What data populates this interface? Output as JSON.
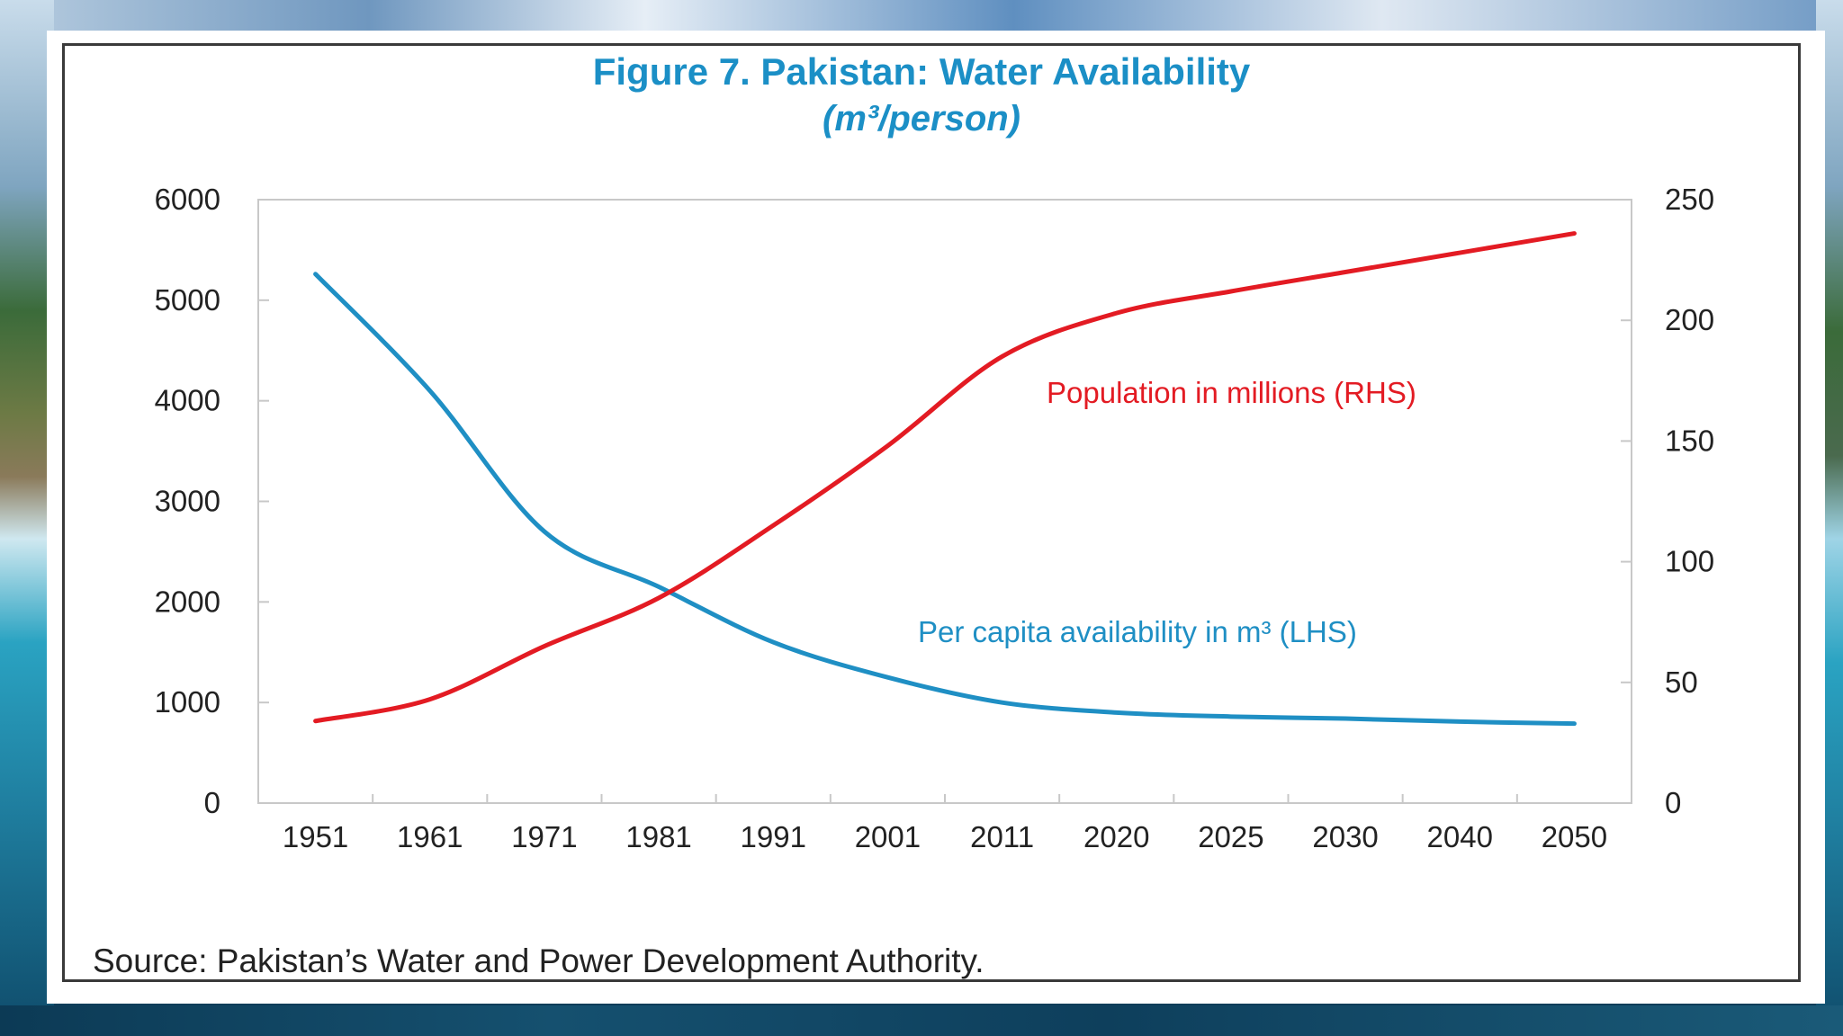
{
  "chart_data": {
    "type": "line",
    "title": "Figure 7. Pakistan: Water Availability",
    "subtitle": "(m³/person)",
    "source": "Source: Pakistan’s Water and Power Development Authority.",
    "categories": [
      "1951",
      "1961",
      "1971",
      "1981",
      "1991",
      "2001",
      "2011",
      "2020",
      "2025",
      "2030",
      "2040",
      "2050"
    ],
    "left_axis": {
      "ylim": [
        0,
        6000
      ],
      "ticks": [
        "0",
        "1000",
        "2000",
        "3000",
        "4000",
        "5000",
        "6000"
      ]
    },
    "right_axis": {
      "ylim": [
        0,
        250
      ],
      "ticks": [
        "0",
        "50",
        "100",
        "150",
        "200",
        "250"
      ]
    },
    "series": [
      {
        "name": "Per capita availability in m³ (LHS)",
        "axis": "left",
        "color": "#1f8fc4",
        "values": [
          5260,
          4100,
          2700,
          2150,
          1600,
          1250,
          1000,
          900,
          860,
          840,
          810,
          790
        ]
      },
      {
        "name": "Population in millions (RHS)",
        "axis": "right",
        "color": "#e31b23",
        "values": [
          34,
          43,
          65,
          85,
          115,
          148,
          185,
          203,
          212,
          220,
          228,
          236
        ]
      }
    ],
    "grid": false,
    "legend": "inline labels"
  }
}
